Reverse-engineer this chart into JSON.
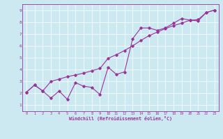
{
  "xlabel": "Windchill (Refroidissement éolien,°C)",
  "ylabel": "",
  "bg_color": "#cce8f0",
  "line_color": "#993399",
  "xlim": [
    -0.5,
    23.5
  ],
  "ylim": [
    0.5,
    9.5
  ],
  "xticks": [
    0,
    1,
    2,
    3,
    4,
    5,
    6,
    7,
    8,
    9,
    10,
    11,
    12,
    13,
    14,
    15,
    16,
    17,
    18,
    19,
    20,
    21,
    22,
    23
  ],
  "yticks": [
    1,
    2,
    3,
    4,
    5,
    6,
    7,
    8,
    9
  ],
  "series1_x": [
    0,
    1,
    2,
    3,
    4,
    5,
    6,
    7,
    8,
    9,
    10,
    11,
    12,
    13,
    14,
    15,
    16,
    17,
    18,
    19,
    20,
    21,
    22,
    23
  ],
  "series1_y": [
    2.1,
    2.7,
    2.2,
    1.6,
    2.2,
    1.5,
    2.9,
    2.6,
    2.5,
    1.9,
    4.2,
    3.6,
    3.8,
    6.6,
    7.5,
    7.5,
    7.3,
    7.5,
    7.9,
    8.3,
    8.15,
    8.1,
    8.8,
    9.0
  ],
  "series2_x": [
    0,
    1,
    2,
    3,
    4,
    5,
    6,
    7,
    8,
    9,
    10,
    11,
    12,
    13,
    14,
    15,
    16,
    17,
    18,
    19,
    20,
    21,
    22,
    23
  ],
  "series2_y": [
    2.1,
    2.7,
    2.2,
    3.0,
    3.2,
    3.4,
    3.55,
    3.7,
    3.9,
    4.1,
    4.95,
    5.25,
    5.6,
    6.0,
    6.45,
    6.85,
    7.15,
    7.45,
    7.7,
    7.9,
    8.15,
    8.2,
    8.8,
    9.0
  ]
}
